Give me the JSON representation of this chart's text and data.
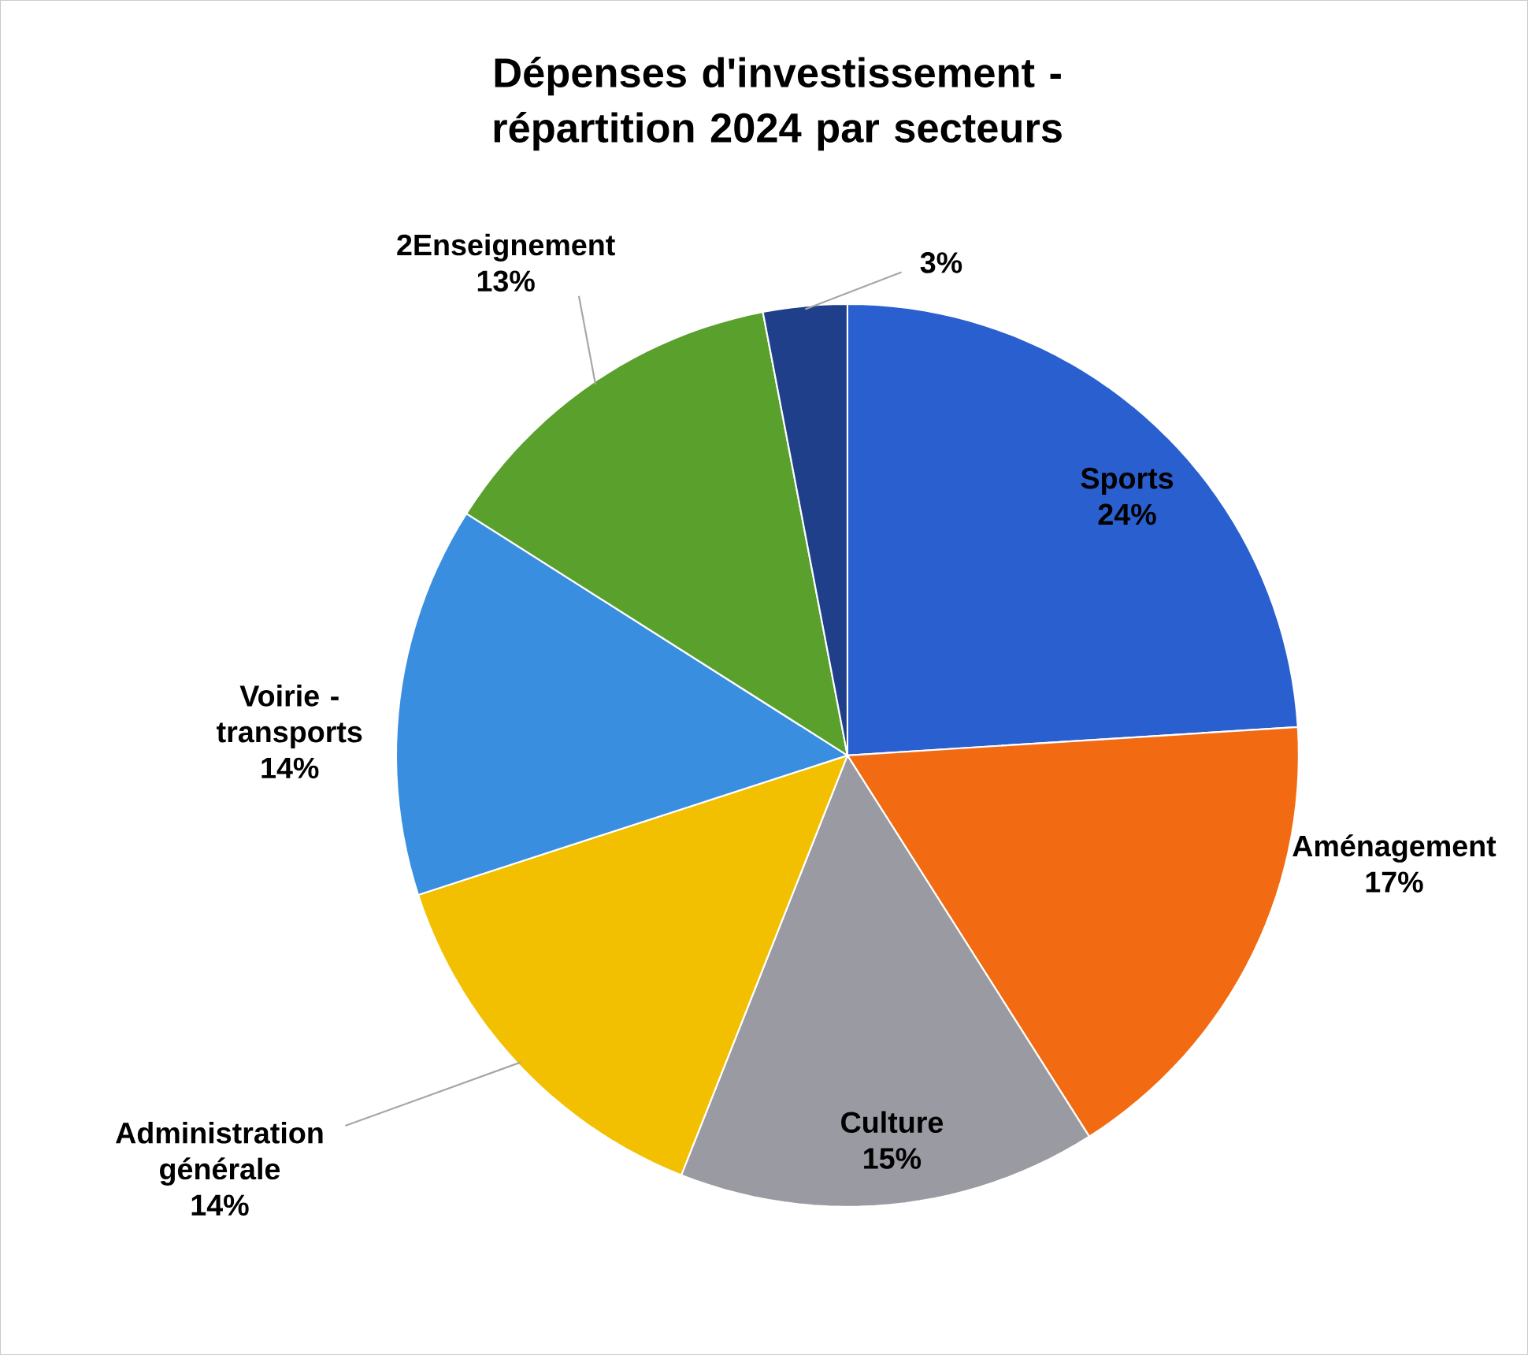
{
  "chart_data": {
    "type": "pie",
    "title": "Dépenses d'investissement - répartition 2024 par secteurs",
    "categories": [
      "Sports",
      "Aménagement",
      "Culture",
      "Administration générale",
      "Voirie - transports",
      "2Enseignement",
      null
    ],
    "values": [
      24,
      17,
      15,
      14,
      14,
      13,
      3
    ],
    "value_labels": [
      "24%",
      "17%",
      "15%",
      "14%",
      "14%",
      "13%",
      "3%"
    ],
    "colors": [
      "#2a5fcf",
      "#f26b12",
      "#9a9aa2",
      "#f2c000",
      "#3a8ee0",
      "#5aa02c",
      "#1f3f8a"
    ]
  }
}
